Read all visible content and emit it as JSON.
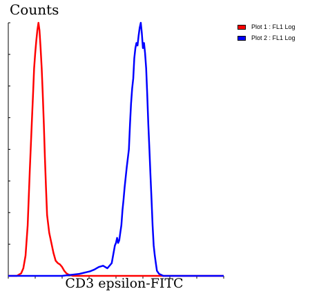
{
  "chart_data": {
    "type": "line",
    "title": "",
    "ylabel": "Counts",
    "xlabel": "CD3 epsilon-FITC",
    "xlim": [
      0,
      1
    ],
    "ylim": [
      0,
      1
    ],
    "grid": false,
    "legend_placement": "top-right",
    "series": [
      {
        "name": "Plot 1 : FL1 Log",
        "color": "#ff0000",
        "x": [
          0.0,
          0.04,
          0.06,
          0.07,
          0.08,
          0.09,
          0.1,
          0.11,
          0.115,
          0.12,
          0.125,
          0.13,
          0.135,
          0.14,
          0.145,
          0.15,
          0.155,
          0.16,
          0.165,
          0.17,
          0.175,
          0.18,
          0.19,
          0.2,
          0.21,
          0.22,
          0.23,
          0.24,
          0.25,
          0.26,
          0.27,
          0.28,
          0.3,
          0.35,
          0.6,
          1.0
        ],
        "y": [
          0.0,
          0.0,
          0.01,
          0.03,
          0.08,
          0.2,
          0.42,
          0.62,
          0.72,
          0.82,
          0.88,
          0.93,
          0.97,
          1.0,
          0.97,
          0.9,
          0.82,
          0.72,
          0.6,
          0.47,
          0.35,
          0.24,
          0.17,
          0.13,
          0.09,
          0.06,
          0.05,
          0.045,
          0.035,
          0.02,
          0.01,
          0.005,
          0.0,
          0.0,
          0.0,
          0.0
        ]
      },
      {
        "name": "Plot 2 : FL1 Log",
        "color": "#0000ff",
        "x": [
          0.0,
          0.25,
          0.28,
          0.3,
          0.33,
          0.35,
          0.38,
          0.4,
          0.42,
          0.44,
          0.46,
          0.48,
          0.495,
          0.5,
          0.505,
          0.51,
          0.515,
          0.52,
          0.525,
          0.53,
          0.535,
          0.54,
          0.55,
          0.56,
          0.565,
          0.57,
          0.575,
          0.58,
          0.585,
          0.59,
          0.595,
          0.6,
          0.605,
          0.61,
          0.615,
          0.62,
          0.625,
          0.63,
          0.635,
          0.64,
          0.645,
          0.65,
          0.655,
          0.66,
          0.665,
          0.67,
          0.675,
          0.68,
          0.685,
          0.69,
          0.7,
          0.72,
          0.75,
          1.0
        ],
        "y": [
          0.0,
          0.0,
          0.003,
          0.005,
          0.008,
          0.012,
          0.018,
          0.025,
          0.035,
          0.04,
          0.03,
          0.05,
          0.12,
          0.13,
          0.15,
          0.13,
          0.14,
          0.17,
          0.2,
          0.26,
          0.3,
          0.35,
          0.43,
          0.5,
          0.6,
          0.68,
          0.74,
          0.78,
          0.86,
          0.9,
          0.92,
          0.91,
          0.95,
          0.98,
          1.0,
          0.96,
          0.9,
          0.92,
          0.88,
          0.82,
          0.72,
          0.6,
          0.5,
          0.4,
          0.3,
          0.2,
          0.12,
          0.08,
          0.05,
          0.02,
          0.008,
          0.0,
          0.0,
          0.0
        ]
      }
    ]
  }
}
